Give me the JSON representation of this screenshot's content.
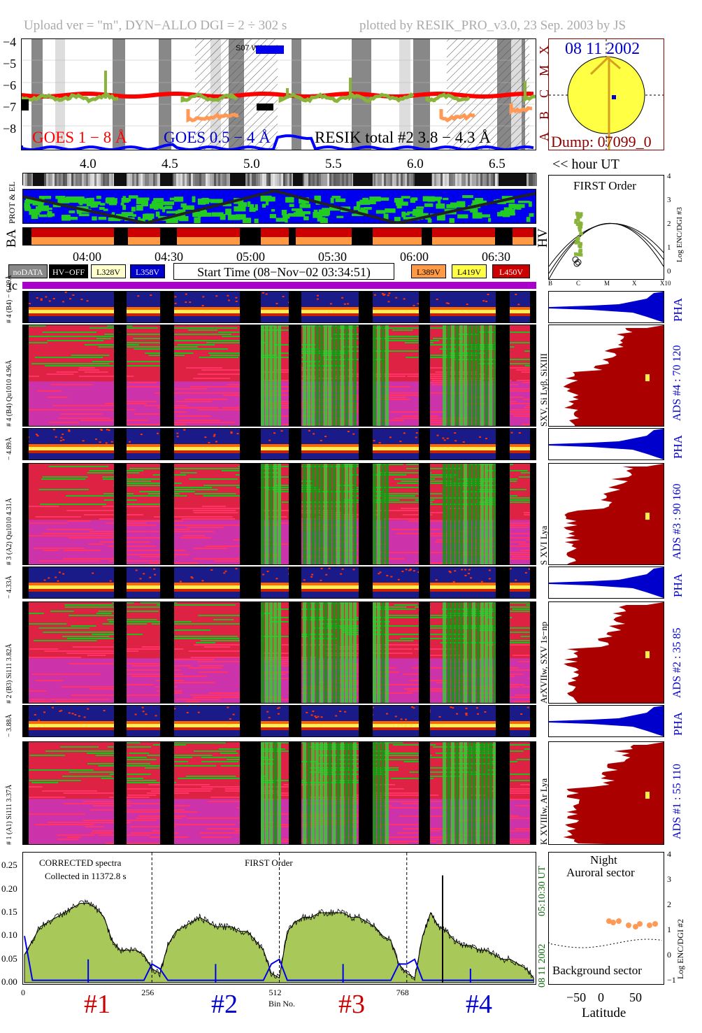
{
  "header": {
    "left": "Upload ver = \"m\", DYN−ALLO DGI =   2 ÷ 302 s",
    "right": "plotted by RESIK_PRO_v3.0, 23 Sep. 2003 by JS"
  },
  "goes_panel": {
    "y_ticks": [
      "−4",
      "−5",
      "−6",
      "−7",
      "−8"
    ],
    "class_letters": [
      "X",
      "M",
      "C",
      "B",
      "A"
    ],
    "x_ticks": [
      "4.0",
      "4.5",
      "5.0",
      "5.5",
      "6.0",
      "6.5"
    ],
    "hour_label": "<< hour UT",
    "legend_goes_long": "GOES 1 − 8 Å",
    "legend_goes_short": "GOES 0.5 − 4 Å",
    "legend_resik": "RESIK total #2  3.8 − 4.3 Å",
    "marker": "S07 W21",
    "colors": {
      "goes_long": "#ff0000",
      "goes_short": "#0000ff",
      "resik": "#8ab33a",
      "hv": "#ff9955"
    }
  },
  "sun_panel": {
    "date": "08 11 2002",
    "dump": "Dump: 07099_0",
    "colors": {
      "disk": "#ffff44",
      "frame": "#8b0000",
      "date": "#0000cc"
    }
  },
  "prot_el": {
    "label_prot": "PROT & EL",
    "label_ba": "BA",
    "label_hv": "HV"
  },
  "time_axis": {
    "ticks": [
      "04:00",
      "04:30",
      "05:00",
      "05:30",
      "06:00",
      "06:30"
    ]
  },
  "status_legend": {
    "nodata": "noDATA",
    "hvoff": "HV−OFF",
    "l328": "L328V",
    "l358": "L358V",
    "start_time": "Start Time (08−Nov−02 03:34:51)",
    "l389": "L389V",
    "l419": "L419V",
    "l450": "L450V",
    "tc": "tc",
    "colors": {
      "nodata": "#888888",
      "hvoff": "#000000",
      "l328": "#ffffcc",
      "l358": "#0000cc",
      "l389": "#ff9944",
      "l419": "#ffff44",
      "l450": "#cc0000"
    }
  },
  "first_order": {
    "title": "FIRST Order",
    "ylabel": "Log ENC/DGI #3",
    "y_ticks": [
      "4",
      "3",
      "2",
      "1",
      "0"
    ],
    "x_ticks": [
      "B",
      "C",
      "M",
      "X",
      "X10"
    ]
  },
  "channels": [
    {
      "pha_label": "# 4 (B4) − 6.09Å",
      "spec_label": "# 4 (B4) Qu1010 4.96Å",
      "lines": "SXV, Si Lyβ, SiXIII",
      "ads": "ADS #4 :  70 120",
      "pha": "PHA"
    },
    {
      "pha_label": "− 4.89Å",
      "spec_label": "# 3 (A2) Qu1010 4.31Å",
      "lines": "S XVI Lya",
      "ads": "ADS #3 :  90 160",
      "pha": "PHA"
    },
    {
      "pha_label": "− 4.33Å",
      "spec_label": "# 2 (B3) Si111 3.82Å",
      "lines": "ArXVIIw, SXV 1s−np",
      "ads": "ADS #2 :  35 85",
      "pha": "PHA"
    },
    {
      "pha_label": "− 3.88Å",
      "spec_label": "# 1 (A1) Si111 3.37Å",
      "lines": "K XVIIIw, Ar Lya",
      "ads": "ADS #1 :  55 110",
      "pha": "PHA"
    }
  ],
  "spectrum_panel": {
    "title": "CORRECTED spectra",
    "collected": "Collected in 11372.8 s",
    "order": "FIRST Order",
    "time_label": "05:10:30 UT",
    "date_label": "08 11 2002",
    "xlabel": "Bin No.",
    "section_labels": [
      "#1",
      "#2",
      "#3",
      "#4"
    ],
    "section_colors": [
      "#cc0000",
      "#0000cc",
      "#cc0000",
      "#0000cc"
    ]
  },
  "latitude_panel": {
    "title1": "Night",
    "title2": "Auroral sector",
    "bottom": "Background sector",
    "xlabel": "Latitude",
    "ylabel": "Log ENC/DGI #2",
    "x_ticks": [
      "−50",
      "0",
      "50"
    ],
    "y_ticks": [
      "4",
      "3",
      "2",
      "1",
      "0",
      "−1"
    ]
  },
  "chart_data": {
    "type": "area",
    "title": "CORRECTED spectra",
    "xlabel": "Bin No.",
    "ylabel": "",
    "x_ticks": [
      0,
      256,
      512,
      768
    ],
    "y_ticks": [
      0.0,
      0.05,
      0.1,
      0.15,
      0.2,
      0.25
    ],
    "xlim": [
      0,
      1024
    ],
    "ylim": [
      0,
      0.27
    ],
    "x": [
      0,
      16,
      32,
      48,
      64,
      80,
      96,
      112,
      128,
      144,
      160,
      176,
      192,
      208,
      224,
      240,
      256,
      272,
      288,
      304,
      320,
      336,
      352,
      368,
      384,
      400,
      416,
      432,
      448,
      464,
      480,
      496,
      512,
      528,
      544,
      560,
      576,
      592,
      608,
      624,
      640,
      656,
      672,
      688,
      704,
      720,
      736,
      752,
      768,
      784,
      800,
      816,
      832,
      848,
      864,
      880,
      896,
      912,
      928,
      944,
      960,
      976,
      992,
      1008,
      1023
    ],
    "series": [
      {
        "values": [
          0.06,
          0.09,
          0.12,
          0.13,
          0.14,
          0.15,
          0.16,
          0.17,
          0.17,
          0.16,
          0.14,
          0.09,
          0.07,
          0.07,
          0.07,
          0.06,
          0.03,
          0.02,
          0.08,
          0.11,
          0.12,
          0.13,
          0.14,
          0.13,
          0.12,
          0.12,
          0.12,
          0.11,
          0.11,
          0.09,
          0.07,
          0.02,
          0.01,
          0.11,
          0.13,
          0.14,
          0.14,
          0.15,
          0.15,
          0.15,
          0.15,
          0.14,
          0.14,
          0.13,
          0.12,
          0.1,
          0.09,
          0.04,
          0.02,
          0.01,
          0.1,
          0.15,
          0.12,
          0.11,
          0.09,
          0.08,
          0.08,
          0.07,
          0.07,
          0.06,
          0.05,
          0.05,
          0.04,
          0.03,
          0.01
        ]
      },
      {
        "values": [
          0.1,
          0.005,
          0.005,
          0.005,
          0.005,
          0.005,
          0.005,
          0.005,
          0.005,
          0.005,
          0.005,
          0.005,
          0.005,
          0.005,
          0.005,
          0.005,
          0.04,
          0.03,
          0.005,
          0.005,
          0.005,
          0.005,
          0.005,
          0.005,
          0.005,
          0.005,
          0.005,
          0.005,
          0.005,
          0.005,
          0.005,
          0.04,
          0.05,
          0.005,
          0.005,
          0.005,
          0.005,
          0.005,
          0.005,
          0.005,
          0.005,
          0.005,
          0.005,
          0.005,
          0.005,
          0.005,
          0.005,
          0.04,
          0.04,
          0.05,
          0.005,
          0.005,
          0.005,
          0.005,
          0.005,
          0.005,
          0.005,
          0.005,
          0.005,
          0.005,
          0.005,
          0.005,
          0.005,
          0.005,
          0.005
        ]
      }
    ],
    "peaks": [
      {
        "x": 840,
        "y": 0.23
      },
      {
        "x": 128,
        "y": 0.05
      },
      {
        "x": 384,
        "y": 0.04
      },
      {
        "x": 640,
        "y": 0.04
      },
      {
        "x": 896,
        "y": 0.03
      }
    ]
  }
}
